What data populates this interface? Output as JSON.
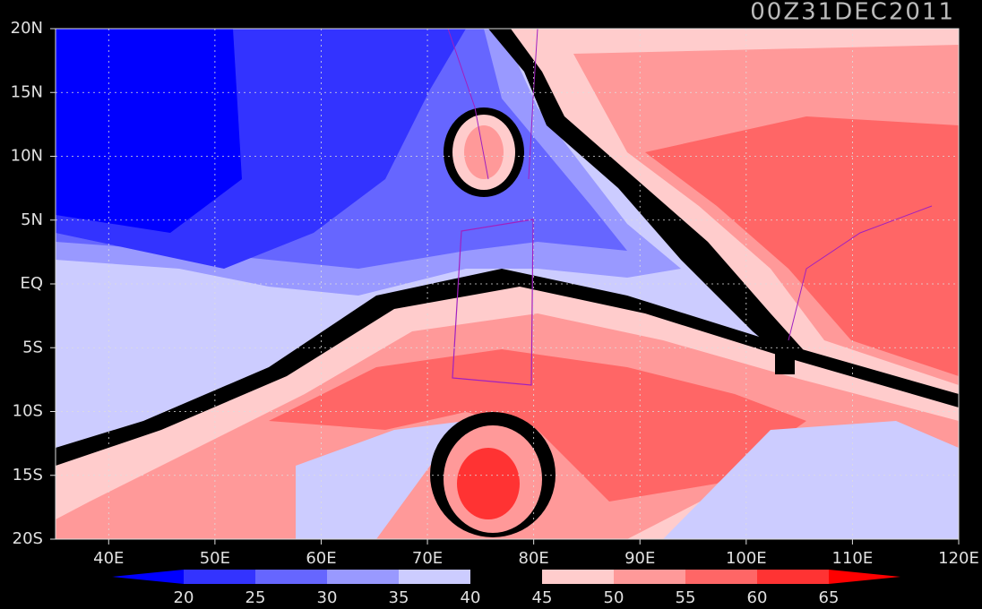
{
  "title": "00Z31DEC2011",
  "map": {
    "lon_range": [
      35,
      120
    ],
    "lat_range": [
      -20,
      20
    ],
    "lat_ticks": [
      {
        "value": 20,
        "label": "20N"
      },
      {
        "value": 15,
        "label": "15N"
      },
      {
        "value": 10,
        "label": "10N"
      },
      {
        "value": 5,
        "label": "5N"
      },
      {
        "value": 0,
        "label": "EQ"
      },
      {
        "value": -5,
        "label": "5S"
      },
      {
        "value": -10,
        "label": "10S"
      },
      {
        "value": -15,
        "label": "15S"
      },
      {
        "value": -20,
        "label": "20S"
      }
    ],
    "lon_ticks": [
      {
        "value": 40,
        "label": "40E"
      },
      {
        "value": 50,
        "label": "50E"
      },
      {
        "value": 60,
        "label": "60E"
      },
      {
        "value": 70,
        "label": "70E"
      },
      {
        "value": 80,
        "label": "80E"
      },
      {
        "value": 90,
        "label": "90E"
      },
      {
        "value": 100,
        "label": "100E"
      },
      {
        "value": 110,
        "label": "110E"
      },
      {
        "value": 120,
        "label": "120E"
      }
    ],
    "grid": true
  },
  "colorbar": {
    "levels": [
      20,
      25,
      30,
      35,
      40,
      45,
      50,
      55,
      60,
      65
    ],
    "colors": [
      "#0000ff",
      "#3333ff",
      "#6666ff",
      "#9999ff",
      "#ccccff",
      "#000000",
      "#ffcccc",
      "#ff9999",
      "#ff6666",
      "#ff3333",
      "#ff0000"
    ]
  }
}
